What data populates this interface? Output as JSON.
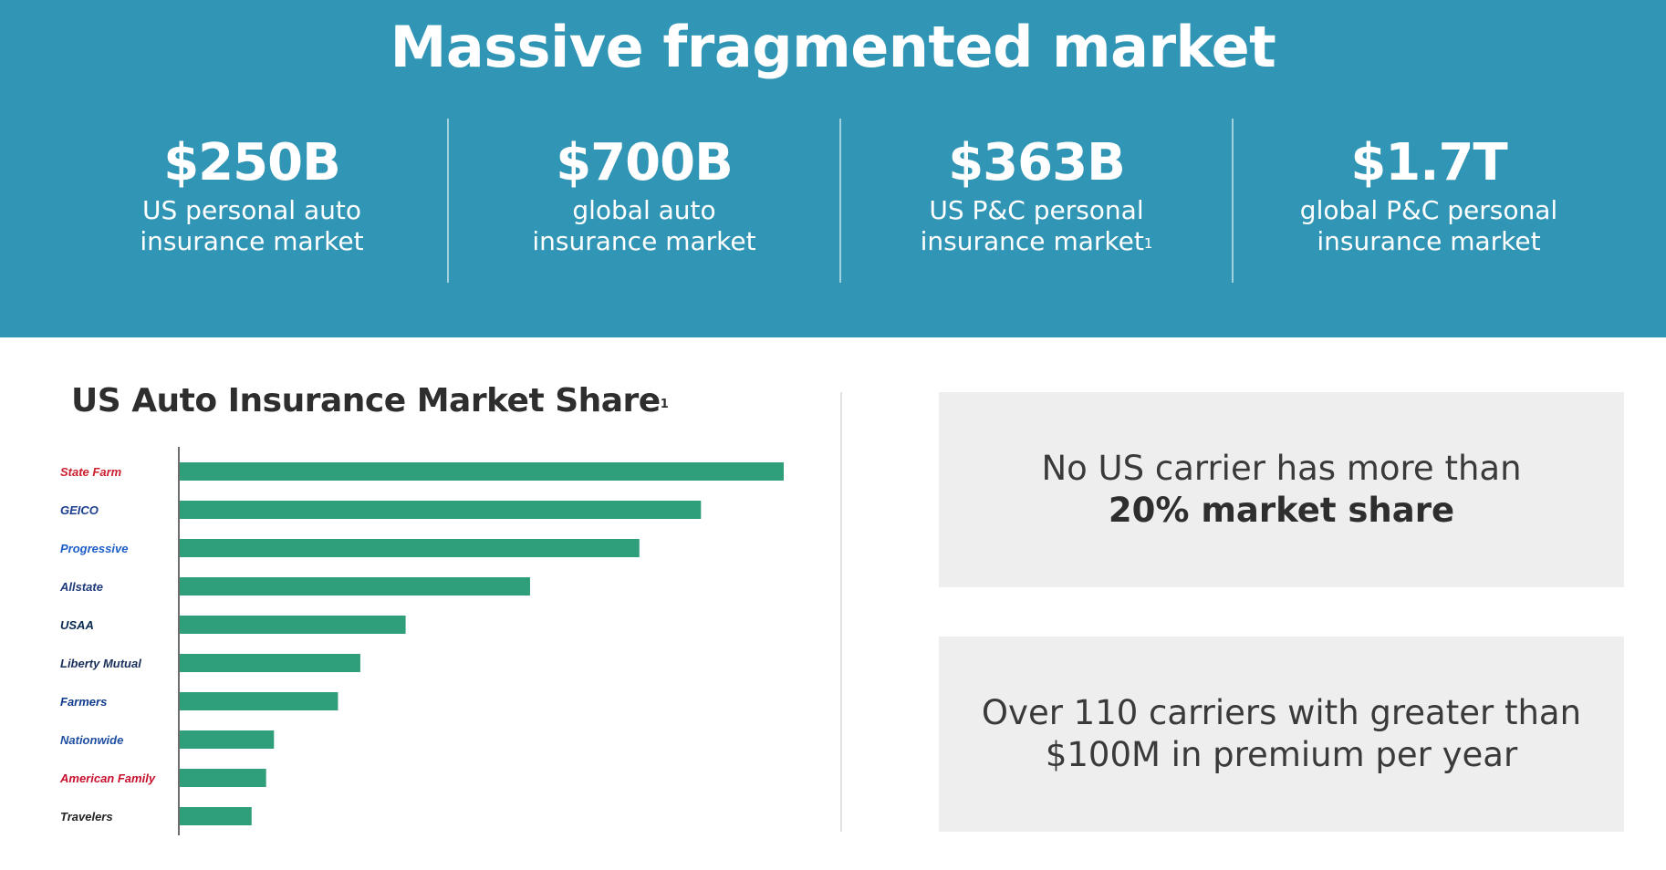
{
  "header": {
    "title": "Massive fragmented market"
  },
  "stats": [
    {
      "value": "$250B",
      "label_line1": "US personal auto",
      "label_line2": "insurance market",
      "footnote": ""
    },
    {
      "value": "$700B",
      "label_line1": "global auto",
      "label_line2": "insurance market",
      "footnote": ""
    },
    {
      "value": "$363B",
      "label_line1": "US P&C personal",
      "label_line2": "insurance market",
      "footnote": "1"
    },
    {
      "value": "$1.7T",
      "label_line1": "global P&C personal",
      "label_line2": "insurance market",
      "footnote": ""
    }
  ],
  "chart_title": {
    "text": "US Auto Insurance Market Share",
    "footnote": "1"
  },
  "chart_data": {
    "type": "bar",
    "orientation": "horizontal",
    "categories": [
      "State Farm",
      "GEICO",
      "Progressive",
      "Allstate",
      "USAA",
      "Liberty Mutual",
      "Farmers",
      "Nationwide",
      "American Family",
      "Travelers"
    ],
    "values": [
      100,
      86.3,
      76.1,
      58,
      37.4,
      29.9,
      26.2,
      15.6,
      14.3,
      11.9
    ],
    "value_unit": "relative bar length (no axis scale printed)",
    "title": "US Auto Insurance Market Share",
    "xlabel": "",
    "ylabel": "",
    "grid": false,
    "legend": "none",
    "bar_color": "#2f9e7b",
    "logo_colors": {
      "State Farm": "#cc1f2e",
      "GEICO": "#1c3f8f",
      "Progressive": "#1e5ec8",
      "Allstate": "#1f3a7a",
      "USAA": "#0b2b50",
      "Liberty Mutual": "#1a2f5a",
      "Farmers": "#0f3c8c",
      "Nationwide": "#1f4fa1",
      "American Family": "#c8102e",
      "Travelers": "#222222"
    }
  },
  "callouts": [
    {
      "line1": "No US carrier has more than",
      "line2": "20% market share",
      "bold_line": 2
    },
    {
      "line1": "Over 110 carriers with greater than",
      "line2": "$100M in premium per year",
      "bold_line": 0
    }
  ],
  "colors": {
    "banner": "#3196b5",
    "bar": "#2f9e7b",
    "callout_bg": "#eeeeee"
  }
}
